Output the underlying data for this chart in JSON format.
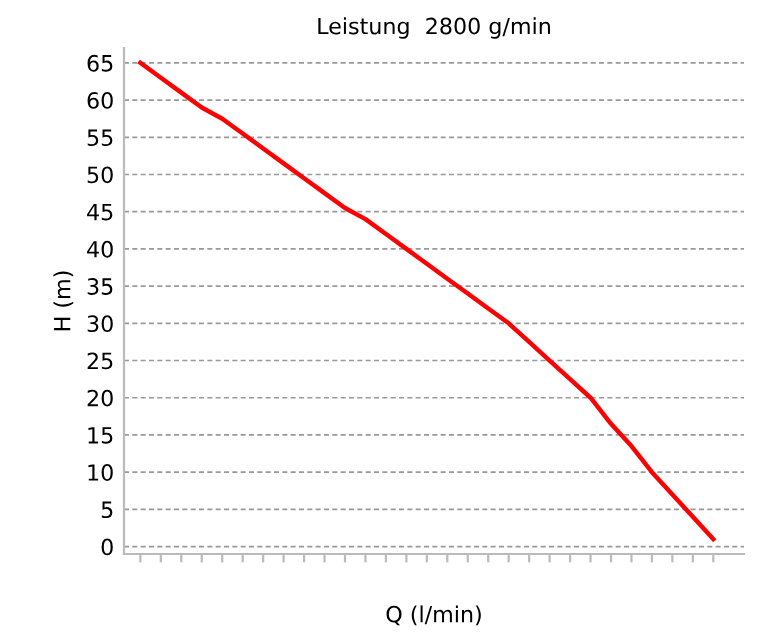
{
  "chart_data": {
    "type": "line",
    "title": "Leistung  2800 g/min",
    "xlabel": "Q (l/min)",
    "ylabel": "H (m)",
    "categories": [
      null,
      null,
      null,
      null,
      null,
      null,
      null,
      null,
      null,
      null,
      null,
      null,
      null,
      null,
      null,
      null,
      null,
      null,
      null,
      null,
      null,
      null,
      null,
      null,
      null,
      null,
      null,
      null,
      null
    ],
    "series": [
      {
        "color": "#ff0000",
        "values": [
          65,
          63,
          61,
          59,
          57.5,
          55.5,
          53.5,
          51.5,
          49.5,
          47.5,
          45.5,
          44,
          42,
          40,
          38,
          36,
          34,
          32,
          30,
          27.5,
          25,
          22.5,
          20,
          16.5,
          13.5,
          10,
          7,
          4,
          1
        ]
      }
    ],
    "ylim": [
      -1,
      67
    ],
    "yticks": [
      0,
      5,
      10,
      15,
      20,
      25,
      30,
      35,
      40,
      45,
      50,
      55,
      60,
      65
    ],
    "grid": "y",
    "legend": false,
    "marker": "none",
    "line_style": "solid"
  }
}
